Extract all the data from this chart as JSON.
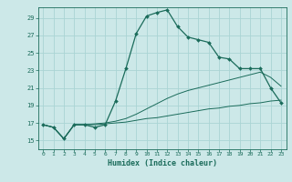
{
  "title": "",
  "xlabel": "Humidex (Indice chaleur)",
  "background_color": "#cce8e8",
  "grid_color": "#aad4d4",
  "line_color": "#1a6b5a",
  "xlim": [
    -0.5,
    23.5
  ],
  "ylim": [
    14.0,
    30.2
  ],
  "yticks": [
    15,
    17,
    19,
    21,
    23,
    25,
    27,
    29
  ],
  "xticks": [
    0,
    1,
    2,
    3,
    4,
    5,
    6,
    7,
    8,
    9,
    10,
    11,
    12,
    13,
    14,
    15,
    16,
    17,
    18,
    19,
    20,
    21,
    22,
    23
  ],
  "line1_x": [
    0,
    1,
    2,
    3,
    4,
    5,
    6,
    7,
    8,
    9,
    10,
    11,
    12,
    13,
    14,
    15,
    16,
    17,
    18,
    19,
    20,
    21,
    22,
    23
  ],
  "line1_y": [
    16.8,
    16.5,
    15.2,
    16.8,
    16.8,
    16.5,
    16.8,
    19.5,
    23.2,
    27.2,
    29.2,
    29.6,
    29.9,
    28.0,
    26.8,
    26.5,
    26.2,
    24.5,
    24.3,
    23.2,
    23.2,
    23.2,
    21.0,
    19.3
  ],
  "line2_x": [
    0,
    1,
    2,
    3,
    4,
    5,
    6,
    7,
    8,
    9,
    10,
    11,
    12,
    13,
    14,
    15,
    16,
    17,
    18,
    19,
    20,
    21,
    22,
    23
  ],
  "line2_y": [
    16.8,
    16.5,
    15.2,
    16.8,
    16.8,
    16.8,
    16.9,
    17.0,
    17.1,
    17.3,
    17.5,
    17.6,
    17.8,
    18.0,
    18.2,
    18.4,
    18.6,
    18.7,
    18.9,
    19.0,
    19.2,
    19.3,
    19.5,
    19.6
  ],
  "line3_x": [
    0,
    1,
    2,
    3,
    4,
    5,
    6,
    7,
    8,
    9,
    10,
    11,
    12,
    13,
    14,
    15,
    16,
    17,
    18,
    19,
    20,
    21,
    22,
    23
  ],
  "line3_y": [
    16.8,
    16.5,
    15.2,
    16.8,
    16.8,
    16.9,
    17.0,
    17.2,
    17.5,
    18.0,
    18.6,
    19.2,
    19.8,
    20.3,
    20.7,
    21.0,
    21.3,
    21.6,
    21.9,
    22.2,
    22.5,
    22.8,
    22.2,
    21.2
  ]
}
